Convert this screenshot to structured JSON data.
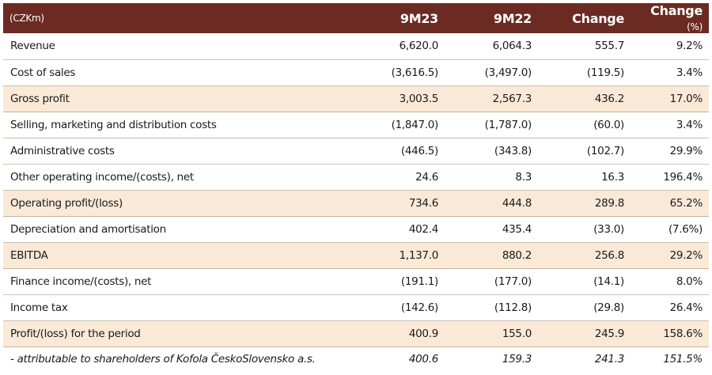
{
  "header": {
    "unit": "(CZKm)",
    "col1": "9M23",
    "col2": "9M22",
    "col3": "Change",
    "col4_main": "Change",
    "col4_unit": "(%)"
  },
  "rows": [
    {
      "label": "Revenue",
      "v1": "6,620.0",
      "v2": "6,064.3",
      "change": "555.7",
      "pct": "9.2%"
    },
    {
      "label": "Cost of sales",
      "v1": "(3,616.5)",
      "v2": "(3,497.0)",
      "change": "(119.5)",
      "pct": "3.4%"
    },
    {
      "label": "Gross profit",
      "v1": "3,003.5",
      "v2": "2,567.3",
      "change": "436.2",
      "pct": "17.0%"
    },
    {
      "label": "Selling, marketing and distribution costs",
      "v1": "(1,847.0)",
      "v2": "(1,787.0)",
      "change": "(60.0)",
      "pct": "3.4%"
    },
    {
      "label": "Administrative costs",
      "v1": "(446.5)",
      "v2": "(343.8)",
      "change": "(102.7)",
      "pct": "29.9%"
    },
    {
      "label": "Other operating income/(costs), net",
      "v1": "24.6",
      "v2": "8.3",
      "change": "16.3",
      "pct": "196.4%"
    },
    {
      "label": "Operating profit/(loss)",
      "v1": "734.6",
      "v2": "444.8",
      "change": "289.8",
      "pct": "65.2%"
    },
    {
      "label": "Depreciation and amortisation",
      "v1": "402.4",
      "v2": "435.4",
      "change": "(33.0)",
      "pct": "(7.6%)"
    },
    {
      "label": "EBITDA",
      "v1": "1,137.0",
      "v2": "880.2",
      "change": "256.8",
      "pct": "29.2%"
    },
    {
      "label": "Finance income/(costs), net",
      "v1": "(191.1)",
      "v2": "(177.0)",
      "change": "(14.1)",
      "pct": "8.0%"
    },
    {
      "label": "Income tax",
      "v1": "(142.6)",
      "v2": "(112.8)",
      "change": "(29.8)",
      "pct": "26.4%"
    },
    {
      "label": "Profit/(loss) for the period",
      "v1": "400.9",
      "v2": "155.0",
      "change": "245.9",
      "pct": "158.6%"
    },
    {
      "label": "- attributable to shareholders of Kofola ČeskoSlovensko a.s.",
      "v1": "400.6",
      "v2": "159.3",
      "change": "241.3",
      "pct": "151.5%"
    }
  ],
  "colors": {
    "header_bg": "#6b2a22",
    "highlight_bg": "#fbe9d8"
  }
}
